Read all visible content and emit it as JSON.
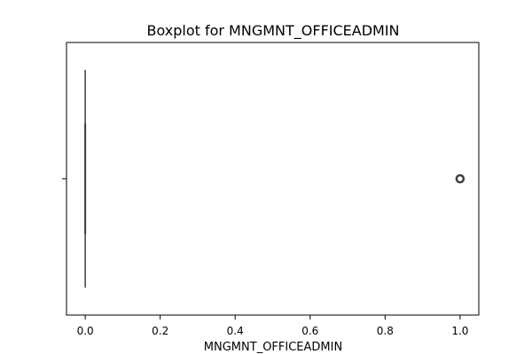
{
  "chart_data": {
    "type": "boxplot",
    "title": "Boxplot for MNGMNT_OFFICEADMIN",
    "xlabel": "MNGMNT_OFFICEADMIN",
    "ylabel": "",
    "xlim": [
      -0.05,
      1.05
    ],
    "xticks": [
      0.0,
      0.2,
      0.4,
      0.6,
      0.8,
      1.0
    ],
    "xtick_labels": [
      "0.0",
      "0.2",
      "0.4",
      "0.6",
      "0.8",
      "1.0"
    ],
    "box": {
      "min": 0.0,
      "q1": 0.0,
      "median": 0.0,
      "q3": 0.0,
      "max": 0.0
    },
    "outliers": [
      1.0
    ],
    "orientation": "horizontal",
    "grid": false
  }
}
